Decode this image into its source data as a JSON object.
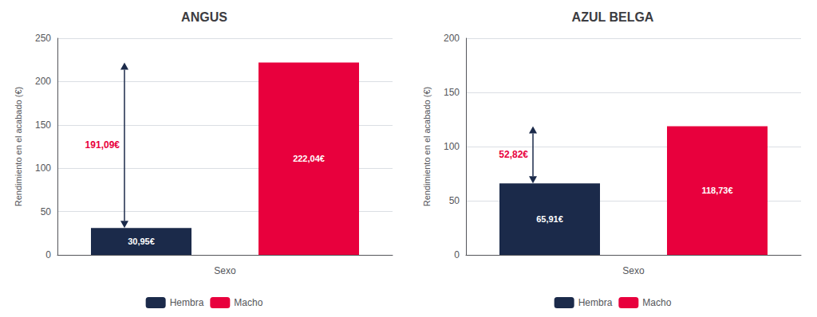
{
  "chart_data": [
    {
      "type": "bar",
      "title": "ANGUS",
      "categories": [
        "Hembra",
        "Macho"
      ],
      "series": [
        {
          "name": "Hembra",
          "color": "#1b2a4a",
          "values": [
            30.95,
            null
          ],
          "value_labels": [
            "30,95€",
            null
          ]
        },
        {
          "name": "Macho",
          "color": "#e8003d",
          "values": [
            null,
            222.04
          ],
          "value_labels": [
            null,
            "222,04€"
          ]
        }
      ],
      "xlabel": "Sexo",
      "ylabel": "Rendimiento en el acabado (€)",
      "ylim": [
        0,
        250
      ],
      "yticks": [
        0,
        50,
        100,
        150,
        200,
        250
      ],
      "grid": true,
      "legend": "bottom",
      "data_labels": true,
      "tick_labels": "y",
      "annotations": [
        {
          "text": "191,09€",
          "from": 30.95,
          "to": 222.04,
          "color": "#e8003d"
        }
      ]
    },
    {
      "type": "bar",
      "title": "AZUL BELGA",
      "categories": [
        "Hembra",
        "Macho"
      ],
      "series": [
        {
          "name": "Hembra",
          "color": "#1b2a4a",
          "values": [
            65.91,
            null
          ],
          "value_labels": [
            "65,91€",
            null
          ]
        },
        {
          "name": "Macho",
          "color": "#e8003d",
          "values": [
            null,
            118.73
          ],
          "value_labels": [
            null,
            "118,73€"
          ]
        }
      ],
      "xlabel": "Sexo",
      "ylabel": "Rendimiento en el acabado (€)",
      "ylim": [
        0,
        200
      ],
      "yticks": [
        0,
        50,
        100,
        150,
        200
      ],
      "grid": true,
      "legend": "bottom",
      "data_labels": true,
      "tick_labels": "y",
      "annotations": [
        {
          "text": "52,82€",
          "from": 65.91,
          "to": 118.73,
          "color": "#e8003d"
        }
      ]
    }
  ]
}
